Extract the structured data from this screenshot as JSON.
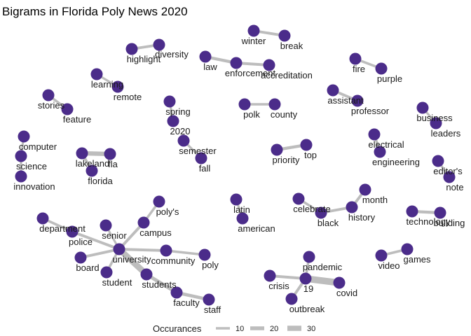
{
  "title": "Bigrams in Florida Poly News 2020",
  "colors": {
    "node": "#4b2c8a",
    "edge": "#bdbdbd",
    "text": "#1a1a1a"
  },
  "legend": {
    "title": "Occurances",
    "entries": [
      {
        "label": "10",
        "value": 10
      },
      {
        "label": "20",
        "value": 20
      },
      {
        "label": "30",
        "value": 30
      }
    ]
  },
  "nodes": [
    {
      "id": "winter",
      "label": "winter"
    },
    {
      "id": "break",
      "label": "break"
    },
    {
      "id": "highlight",
      "label": "highlight"
    },
    {
      "id": "diversity",
      "label": "diversity"
    },
    {
      "id": "law",
      "label": "law"
    },
    {
      "id": "enforcement",
      "label": "enforcement"
    },
    {
      "id": "accreditation",
      "label": "accreditation"
    },
    {
      "id": "fire",
      "label": "fire"
    },
    {
      "id": "purple",
      "label": "purple"
    },
    {
      "id": "learning",
      "label": "learning"
    },
    {
      "id": "remote",
      "label": "remote"
    },
    {
      "id": "assistant",
      "label": "assistant"
    },
    {
      "id": "professor",
      "label": "professor"
    },
    {
      "id": "stories",
      "label": "stories"
    },
    {
      "id": "feature",
      "label": "feature"
    },
    {
      "id": "spring",
      "label": "spring"
    },
    {
      "id": "2020",
      "label": "2020"
    },
    {
      "id": "polk",
      "label": "polk"
    },
    {
      "id": "county",
      "label": "county"
    },
    {
      "id": "business",
      "label": "business"
    },
    {
      "id": "leaders",
      "label": "leaders"
    },
    {
      "id": "computer",
      "label": "computer"
    },
    {
      "id": "science",
      "label": "science"
    },
    {
      "id": "innovation",
      "label": "innovation"
    },
    {
      "id": "semester",
      "label": "semester"
    },
    {
      "id": "fall",
      "label": "fall"
    },
    {
      "id": "electrical",
      "label": "electrical"
    },
    {
      "id": "engineering",
      "label": "engineering"
    },
    {
      "id": "priority",
      "label": "priority"
    },
    {
      "id": "top",
      "label": "top"
    },
    {
      "id": "lakeland",
      "label": "lakeland"
    },
    {
      "id": "fla",
      "label": "fla"
    },
    {
      "id": "florida",
      "label": "florida"
    },
    {
      "id": "editors",
      "label": "editor's"
    },
    {
      "id": "note",
      "label": "note"
    },
    {
      "id": "month",
      "label": "month"
    },
    {
      "id": "celebrate",
      "label": "celebrate"
    },
    {
      "id": "black",
      "label": "black"
    },
    {
      "id": "history",
      "label": "history"
    },
    {
      "id": "polys",
      "label": "poly's"
    },
    {
      "id": "latin",
      "label": "latin"
    },
    {
      "id": "american",
      "label": "american"
    },
    {
      "id": "technology",
      "label": "technology"
    },
    {
      "id": "building",
      "label": "building"
    },
    {
      "id": "department",
      "label": "department"
    },
    {
      "id": "police",
      "label": "police"
    },
    {
      "id": "senior",
      "label": "senior"
    },
    {
      "id": "campus",
      "label": "campus"
    },
    {
      "id": "university",
      "label": "university"
    },
    {
      "id": "community",
      "label": "community"
    },
    {
      "id": "poly",
      "label": "poly"
    },
    {
      "id": "board",
      "label": "board"
    },
    {
      "id": "student",
      "label": "student"
    },
    {
      "id": "students",
      "label": "students"
    },
    {
      "id": "faculty",
      "label": "faculty"
    },
    {
      "id": "staff",
      "label": "staff"
    },
    {
      "id": "pandemic",
      "label": "pandemic"
    },
    {
      "id": "video",
      "label": "video"
    },
    {
      "id": "games",
      "label": "games"
    },
    {
      "id": "crisis",
      "label": "crisis"
    },
    {
      "id": "19",
      "label": "19"
    },
    {
      "id": "covid",
      "label": "covid"
    },
    {
      "id": "outbreak",
      "label": "outbreak"
    }
  ],
  "edges": [
    {
      "from": "winter",
      "to": "break",
      "n": 12
    },
    {
      "from": "highlight",
      "to": "diversity",
      "n": 12
    },
    {
      "from": "law",
      "to": "enforcement",
      "n": 14
    },
    {
      "from": "enforcement",
      "to": "accreditation",
      "n": 12
    },
    {
      "from": "fire",
      "to": "purple",
      "n": 10
    },
    {
      "from": "learning",
      "to": "remote",
      "n": 8
    },
    {
      "from": "assistant",
      "to": "professor",
      "n": 12
    },
    {
      "from": "stories",
      "to": "feature",
      "n": 10
    },
    {
      "from": "spring",
      "to": "2020",
      "n": 9
    },
    {
      "from": "polk",
      "to": "county",
      "n": 10
    },
    {
      "from": "business",
      "to": "leaders",
      "n": 8
    },
    {
      "from": "computer",
      "to": "science",
      "n": 8
    },
    {
      "from": "science",
      "to": "innovation",
      "n": 8
    },
    {
      "from": "semester",
      "to": "fall",
      "n": 9
    },
    {
      "from": "electrical",
      "to": "engineering",
      "n": 10
    },
    {
      "from": "priority",
      "to": "top",
      "n": 14
    },
    {
      "from": "lakeland",
      "to": "fla",
      "n": 24
    },
    {
      "from": "lakeland",
      "to": "florida",
      "n": 12
    },
    {
      "from": "editors",
      "to": "note",
      "n": 8
    },
    {
      "from": "celebrate",
      "to": "black",
      "n": 10
    },
    {
      "from": "black",
      "to": "history",
      "n": 12
    },
    {
      "from": "history",
      "to": "month",
      "n": 12
    },
    {
      "from": "latin",
      "to": "american",
      "n": 8
    },
    {
      "from": "technology",
      "to": "building",
      "n": 14
    },
    {
      "from": "department",
      "to": "police",
      "n": 10
    },
    {
      "from": "police",
      "to": "university",
      "n": 12
    },
    {
      "from": "senior",
      "to": "university",
      "n": 8
    },
    {
      "from": "polys",
      "to": "campus",
      "n": 10
    },
    {
      "from": "campus",
      "to": "university",
      "n": 12
    },
    {
      "from": "university",
      "to": "community",
      "n": 12
    },
    {
      "from": "community",
      "to": "poly",
      "n": 10
    },
    {
      "from": "board",
      "to": "university",
      "n": 12
    },
    {
      "from": "student",
      "to": "university",
      "n": 10
    },
    {
      "from": "university",
      "to": "students",
      "n": 36
    },
    {
      "from": "students",
      "to": "faculty",
      "n": 18
    },
    {
      "from": "faculty",
      "to": "staff",
      "n": 16
    },
    {
      "from": "video",
      "to": "games",
      "n": 10
    },
    {
      "from": "pandemic",
      "to": "19",
      "n": 10
    },
    {
      "from": "crisis",
      "to": "19",
      "n": 12
    },
    {
      "from": "19",
      "to": "covid",
      "n": 40
    },
    {
      "from": "19",
      "to": "outbreak",
      "n": 12
    }
  ]
}
